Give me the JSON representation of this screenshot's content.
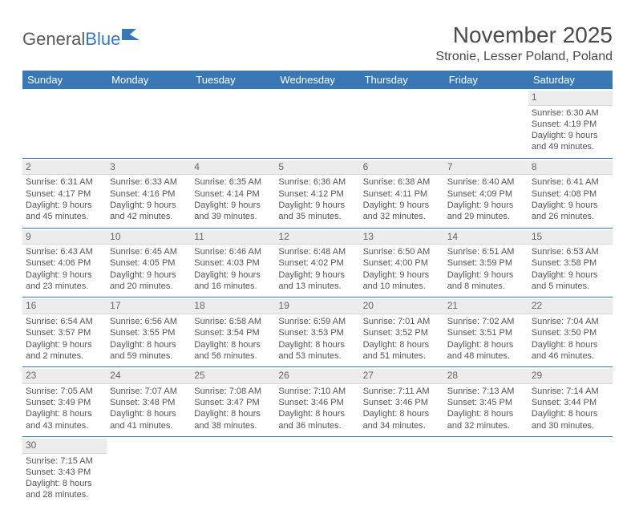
{
  "brand": {
    "part1": "General",
    "part2": "Blue"
  },
  "title": "November 2025",
  "location": "Stronie, Lesser Poland, Poland",
  "colors": {
    "header_bg": "#3a78b5",
    "header_text": "#ffffff",
    "daynum_bg": "#ececec",
    "row_border": "#3a78b5",
    "text": "#555555",
    "page_bg": "#ffffff"
  },
  "weekdays": [
    "Sunday",
    "Monday",
    "Tuesday",
    "Wednesday",
    "Thursday",
    "Friday",
    "Saturday"
  ],
  "weeks": [
    [
      null,
      null,
      null,
      null,
      null,
      null,
      {
        "n": "1",
        "sr": "Sunrise: 6:30 AM",
        "ss": "Sunset: 4:19 PM",
        "d1": "Daylight: 9 hours",
        "d2": "and 49 minutes."
      }
    ],
    [
      {
        "n": "2",
        "sr": "Sunrise: 6:31 AM",
        "ss": "Sunset: 4:17 PM",
        "d1": "Daylight: 9 hours",
        "d2": "and 45 minutes."
      },
      {
        "n": "3",
        "sr": "Sunrise: 6:33 AM",
        "ss": "Sunset: 4:16 PM",
        "d1": "Daylight: 9 hours",
        "d2": "and 42 minutes."
      },
      {
        "n": "4",
        "sr": "Sunrise: 6:35 AM",
        "ss": "Sunset: 4:14 PM",
        "d1": "Daylight: 9 hours",
        "d2": "and 39 minutes."
      },
      {
        "n": "5",
        "sr": "Sunrise: 6:36 AM",
        "ss": "Sunset: 4:12 PM",
        "d1": "Daylight: 9 hours",
        "d2": "and 35 minutes."
      },
      {
        "n": "6",
        "sr": "Sunrise: 6:38 AM",
        "ss": "Sunset: 4:11 PM",
        "d1": "Daylight: 9 hours",
        "d2": "and 32 minutes."
      },
      {
        "n": "7",
        "sr": "Sunrise: 6:40 AM",
        "ss": "Sunset: 4:09 PM",
        "d1": "Daylight: 9 hours",
        "d2": "and 29 minutes."
      },
      {
        "n": "8",
        "sr": "Sunrise: 6:41 AM",
        "ss": "Sunset: 4:08 PM",
        "d1": "Daylight: 9 hours",
        "d2": "and 26 minutes."
      }
    ],
    [
      {
        "n": "9",
        "sr": "Sunrise: 6:43 AM",
        "ss": "Sunset: 4:06 PM",
        "d1": "Daylight: 9 hours",
        "d2": "and 23 minutes."
      },
      {
        "n": "10",
        "sr": "Sunrise: 6:45 AM",
        "ss": "Sunset: 4:05 PM",
        "d1": "Daylight: 9 hours",
        "d2": "and 20 minutes."
      },
      {
        "n": "11",
        "sr": "Sunrise: 6:46 AM",
        "ss": "Sunset: 4:03 PM",
        "d1": "Daylight: 9 hours",
        "d2": "and 16 minutes."
      },
      {
        "n": "12",
        "sr": "Sunrise: 6:48 AM",
        "ss": "Sunset: 4:02 PM",
        "d1": "Daylight: 9 hours",
        "d2": "and 13 minutes."
      },
      {
        "n": "13",
        "sr": "Sunrise: 6:50 AM",
        "ss": "Sunset: 4:00 PM",
        "d1": "Daylight: 9 hours",
        "d2": "and 10 minutes."
      },
      {
        "n": "14",
        "sr": "Sunrise: 6:51 AM",
        "ss": "Sunset: 3:59 PM",
        "d1": "Daylight: 9 hours",
        "d2": "and 8 minutes."
      },
      {
        "n": "15",
        "sr": "Sunrise: 6:53 AM",
        "ss": "Sunset: 3:58 PM",
        "d1": "Daylight: 9 hours",
        "d2": "and 5 minutes."
      }
    ],
    [
      {
        "n": "16",
        "sr": "Sunrise: 6:54 AM",
        "ss": "Sunset: 3:57 PM",
        "d1": "Daylight: 9 hours",
        "d2": "and 2 minutes."
      },
      {
        "n": "17",
        "sr": "Sunrise: 6:56 AM",
        "ss": "Sunset: 3:55 PM",
        "d1": "Daylight: 8 hours",
        "d2": "and 59 minutes."
      },
      {
        "n": "18",
        "sr": "Sunrise: 6:58 AM",
        "ss": "Sunset: 3:54 PM",
        "d1": "Daylight: 8 hours",
        "d2": "and 56 minutes."
      },
      {
        "n": "19",
        "sr": "Sunrise: 6:59 AM",
        "ss": "Sunset: 3:53 PM",
        "d1": "Daylight: 8 hours",
        "d2": "and 53 minutes."
      },
      {
        "n": "20",
        "sr": "Sunrise: 7:01 AM",
        "ss": "Sunset: 3:52 PM",
        "d1": "Daylight: 8 hours",
        "d2": "and 51 minutes."
      },
      {
        "n": "21",
        "sr": "Sunrise: 7:02 AM",
        "ss": "Sunset: 3:51 PM",
        "d1": "Daylight: 8 hours",
        "d2": "and 48 minutes."
      },
      {
        "n": "22",
        "sr": "Sunrise: 7:04 AM",
        "ss": "Sunset: 3:50 PM",
        "d1": "Daylight: 8 hours",
        "d2": "and 46 minutes."
      }
    ],
    [
      {
        "n": "23",
        "sr": "Sunrise: 7:05 AM",
        "ss": "Sunset: 3:49 PM",
        "d1": "Daylight: 8 hours",
        "d2": "and 43 minutes."
      },
      {
        "n": "24",
        "sr": "Sunrise: 7:07 AM",
        "ss": "Sunset: 3:48 PM",
        "d1": "Daylight: 8 hours",
        "d2": "and 41 minutes."
      },
      {
        "n": "25",
        "sr": "Sunrise: 7:08 AM",
        "ss": "Sunset: 3:47 PM",
        "d1": "Daylight: 8 hours",
        "d2": "and 38 minutes."
      },
      {
        "n": "26",
        "sr": "Sunrise: 7:10 AM",
        "ss": "Sunset: 3:46 PM",
        "d1": "Daylight: 8 hours",
        "d2": "and 36 minutes."
      },
      {
        "n": "27",
        "sr": "Sunrise: 7:11 AM",
        "ss": "Sunset: 3:46 PM",
        "d1": "Daylight: 8 hours",
        "d2": "and 34 minutes."
      },
      {
        "n": "28",
        "sr": "Sunrise: 7:13 AM",
        "ss": "Sunset: 3:45 PM",
        "d1": "Daylight: 8 hours",
        "d2": "and 32 minutes."
      },
      {
        "n": "29",
        "sr": "Sunrise: 7:14 AM",
        "ss": "Sunset: 3:44 PM",
        "d1": "Daylight: 8 hours",
        "d2": "and 30 minutes."
      }
    ],
    [
      {
        "n": "30",
        "sr": "Sunrise: 7:15 AM",
        "ss": "Sunset: 3:43 PM",
        "d1": "Daylight: 8 hours",
        "d2": "and 28 minutes."
      },
      null,
      null,
      null,
      null,
      null,
      null
    ]
  ]
}
